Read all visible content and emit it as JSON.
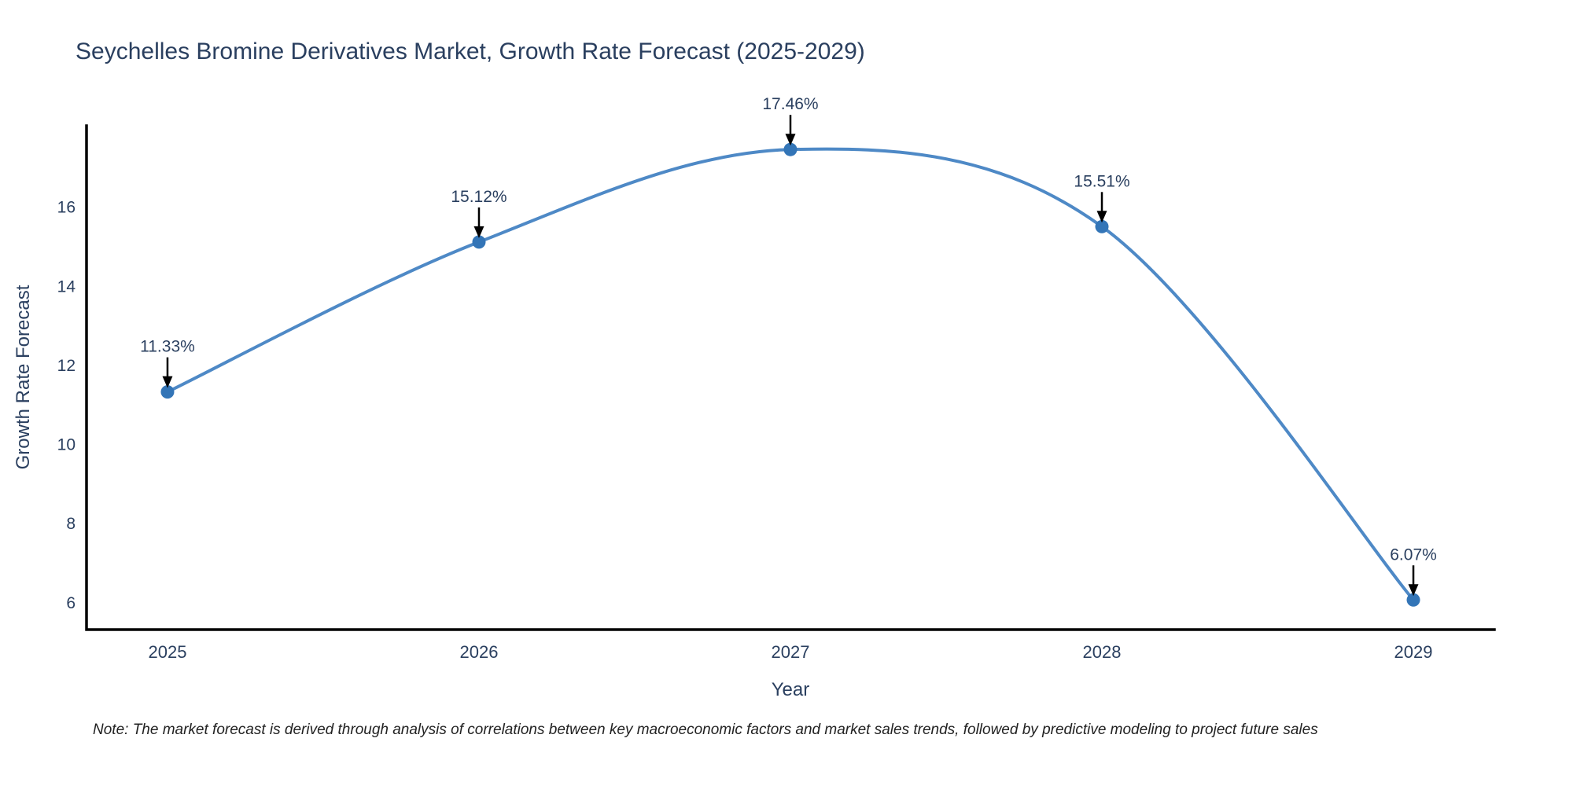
{
  "title": "Seychelles Bromine Derivatives Market, Growth Rate Forecast (2025-2029)",
  "note": "Note: The market forecast is derived through analysis of correlations between key macroeconomic factors and market sales trends, followed by predictive modeling to project future sales",
  "chart_data": {
    "type": "line",
    "line_shape": "spline",
    "title": "Seychelles Bromine Derivatives Market, Growth Rate Forecast (2025-2029)",
    "xlabel": "Year",
    "ylabel": "Growth Rate Forecast",
    "x": [
      2025,
      2026,
      2027,
      2028,
      2029
    ],
    "y": [
      11.33,
      15.12,
      17.46,
      15.51,
      6.07
    ],
    "point_labels": [
      "11.33%",
      "15.12%",
      "17.46%",
      "15.51%",
      "6.07%"
    ],
    "xticks": [
      "2025",
      "2026",
      "2027",
      "2028",
      "2029"
    ],
    "yticks": [
      6,
      8,
      10,
      12,
      14,
      16
    ],
    "xlim": [
      2024.74,
      2029.26
    ],
    "ylim": [
      5.32,
      18.06
    ],
    "grid": false,
    "legend": "none",
    "annotation_style": "black-down-arrow-to-point",
    "colors": {
      "line": "#4e89c6",
      "marker": "#3375b7",
      "axis": "#000000",
      "text": "#2a3f5f",
      "annotation_text": "#2a3f5f",
      "note_text": "#222222",
      "background": "#ffffff"
    }
  }
}
